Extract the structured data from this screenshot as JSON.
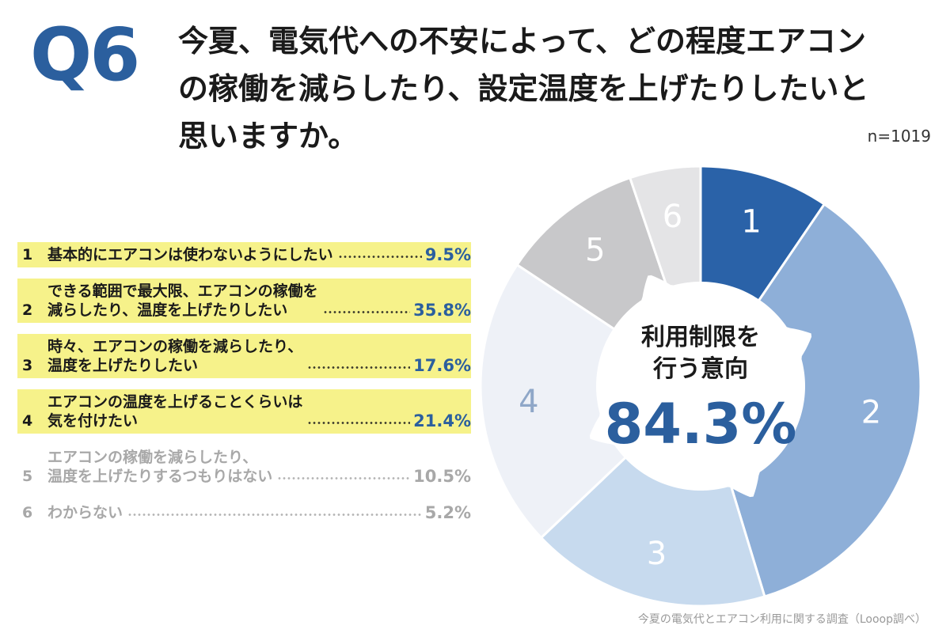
{
  "header": {
    "question_number": "Q6",
    "question_line1": "今夏、電気代への不安によって、どの程度エアコン",
    "question_line2": "の稼働を減らしたり、設定温度を上げたりしたいと",
    "question_line3": "思いますか。",
    "sample_size": "n=1019"
  },
  "legend": [
    {
      "num": "1",
      "text": "基本的にエアコンは使わないようにしたい",
      "pct": "9.5%",
      "highlight": true
    },
    {
      "num": "2",
      "text": "できる範囲で最大限、エアコンの稼働を\n減らしたり、温度を上げたりしたい",
      "pct": "35.8%",
      "highlight": true
    },
    {
      "num": "3",
      "text": "時々、エアコンの稼働を減らしたり、\n温度を上げたりしたい",
      "pct": "17.6%",
      "highlight": true
    },
    {
      "num": "4",
      "text": "エアコンの温度を上げることくらいは\n気を付けたい",
      "pct": "21.4%",
      "highlight": true
    },
    {
      "num": "5",
      "text": "エアコンの稼働を減らしたり、\n温度を上げたりするつもりはない",
      "pct": "10.5%",
      "highlight": false
    },
    {
      "num": "6",
      "text": "わからない",
      "pct": "5.2%",
      "highlight": false
    }
  ],
  "chart_data": {
    "type": "pie",
    "categories": [
      "1",
      "2",
      "3",
      "4",
      "5",
      "6"
    ],
    "values": [
      9.5,
      35.8,
      17.6,
      21.4,
      10.5,
      5.2
    ],
    "center_label_line1": "利用制限を",
    "center_label_line2": "行う意向",
    "center_value": "84.3%",
    "colors": [
      "#2a62a8",
      "#8eafd8",
      "#c7daee",
      "#eef1f7",
      "#c8c8ca",
      "#e4e4e6"
    ],
    "label_colors": [
      "#ffffff",
      "#ffffff",
      "#ffffff",
      "#8fa7c8",
      "#ffffff",
      "#ffffff"
    ]
  },
  "footer": {
    "source": "今夏の電気代とエアコン利用に関する調査（Looop調べ）"
  }
}
